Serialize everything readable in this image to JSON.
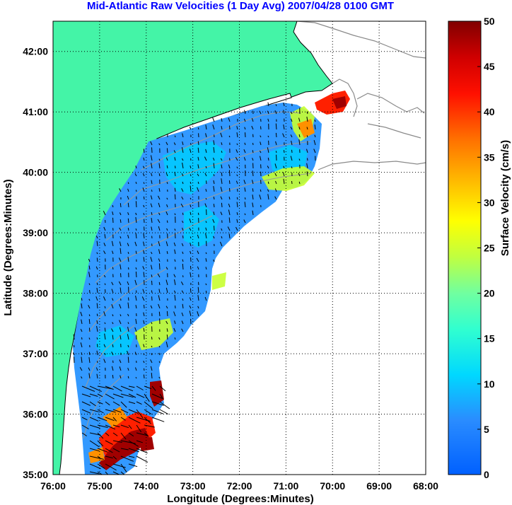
{
  "title": "Mid-Atlantic Raw Velocities (1 Day Avg) 2007/04/28 0100 GMT",
  "xlabel": "Longitude (Degrees:Minutes)",
  "ylabel": "Latitude (Degrees:Minutes)",
  "colorbar_label": "Surface Velocity (cm/s)",
  "colors": {
    "land": "#44f4a7",
    "water_bg": "#ffffff",
    "title": "#0000ff",
    "grid": "#000000",
    "bathy": "#9a9a9a"
  },
  "chart_data": {
    "type": "heatmap",
    "x_ticks": [
      "76:00",
      "75:00",
      "74:00",
      "73:00",
      "72:00",
      "71:00",
      "70:00",
      "69:00",
      "68:00"
    ],
    "y_ticks": [
      "35:00",
      "36:00",
      "37:00",
      "38:00",
      "39:00",
      "40:00",
      "41:00",
      "42:00"
    ],
    "xlim": [
      -76,
      -68
    ],
    "ylim": [
      35,
      42.5
    ],
    "colorbar": {
      "min": 0,
      "max": 50,
      "ticks": [
        "0",
        "5",
        "10",
        "15",
        "20",
        "25",
        "30",
        "35",
        "40",
        "45",
        "50"
      ],
      "colormap": "jet"
    },
    "grid": true
  }
}
